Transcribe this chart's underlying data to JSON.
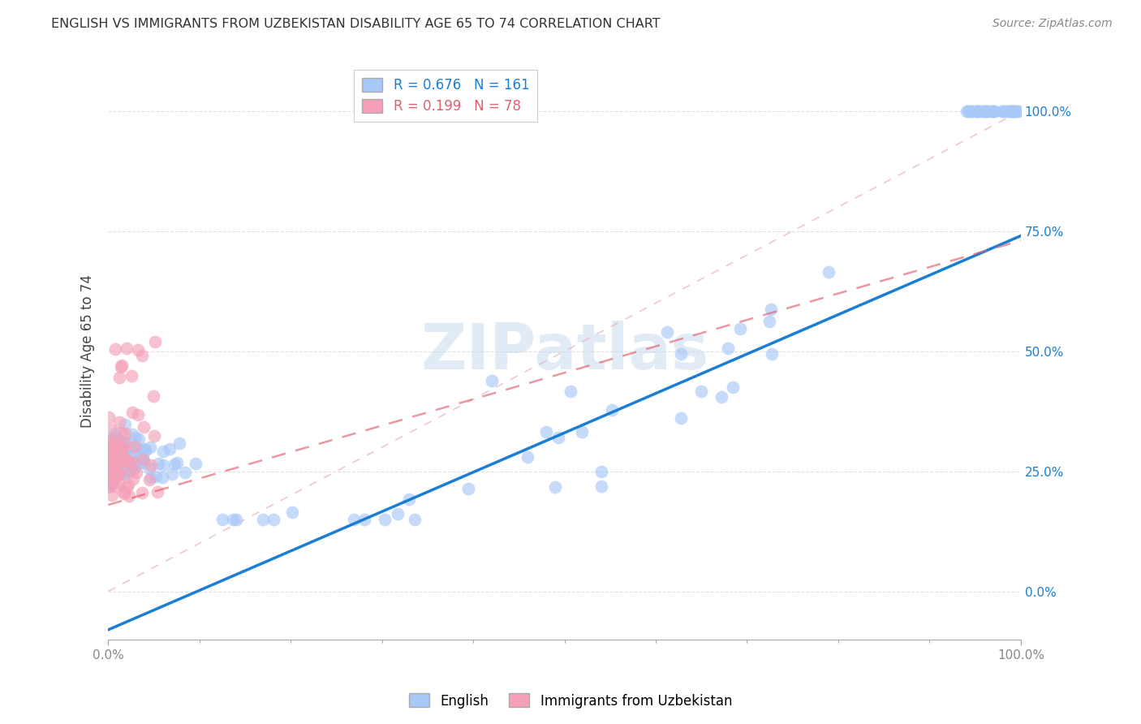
{
  "title": "ENGLISH VS IMMIGRANTS FROM UZBEKISTAN DISABILITY AGE 65 TO 74 CORRELATION CHART",
  "source": "Source: ZipAtlas.com",
  "ylabel": "Disability Age 65 to 74",
  "legend_english": "English",
  "legend_uzbek": "Immigrants from Uzbekistan",
  "english_R": 0.676,
  "english_N": 161,
  "uzbek_R": 0.199,
  "uzbek_N": 78,
  "english_color": "#a8c8f8",
  "uzbek_color": "#f4a0b8",
  "english_line_color": "#1a7fd4",
  "uzbek_line_color": "#e06070",
  "diagonal_color": "#e8b0c0",
  "background_color": "#ffffff",
  "grid_color": "#e0e0e0",
  "tick_color": "#888888",
  "watermark_color": "#c5d8ec",
  "title_color": "#333333",
  "source_color": "#888888",
  "eng_line_slope": 0.82,
  "eng_line_intercept": -0.08,
  "uzb_line_slope": 0.55,
  "uzb_line_intercept": 0.18,
  "xlim": [
    0,
    1
  ],
  "ylim": [
    -0.1,
    1.1
  ]
}
